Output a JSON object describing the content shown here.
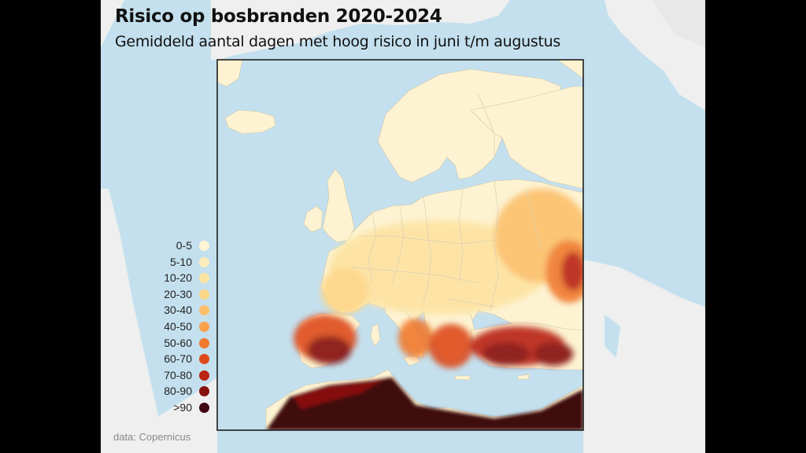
{
  "header": {
    "title": "Risico op bosbranden 2020-2024",
    "subtitle": "Gemiddeld aantal dagen met hoog risico in juni t/m augustus"
  },
  "legend": [
    {
      "label": "0-5",
      "color": "#fdf5d3"
    },
    {
      "label": "5-10",
      "color": "#fdecbc"
    },
    {
      "label": "10-20",
      "color": "#fde3a2"
    },
    {
      "label": "20-30",
      "color": "#fdd586"
    },
    {
      "label": "30-40",
      "color": "#fcc06c"
    },
    {
      "label": "40-50",
      "color": "#f9a04a"
    },
    {
      "label": "50-60",
      "color": "#f07a2e"
    },
    {
      "label": "60-70",
      "color": "#de4b1a"
    },
    {
      "label": "70-80",
      "color": "#b92413"
    },
    {
      "label": "80-90",
      "color": "#86110f"
    },
    {
      "label": ">90",
      "color": "#3f0711"
    }
  ],
  "source": "data: Copernicus",
  "colors": {
    "sea": "#c4e0ee",
    "land_outside": "#efefef",
    "land_base": "#fdf3d2",
    "frame": "#111111"
  }
}
